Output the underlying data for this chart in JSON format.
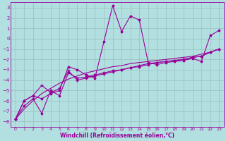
{
  "xlabel": "Windchill (Refroidissement éolien,°C)",
  "background_color": "#b2e0e0",
  "line_color": "#990099",
  "grid_color": "#aacccc",
  "xlim": [
    -0.5,
    23.5
  ],
  "ylim": [
    -8.5,
    3.5
  ],
  "xticks": [
    0,
    1,
    2,
    3,
    4,
    5,
    6,
    7,
    8,
    9,
    10,
    11,
    12,
    13,
    14,
    15,
    16,
    17,
    18,
    19,
    20,
    21,
    22,
    23
  ],
  "yticks": [
    3,
    2,
    1,
    0,
    -1,
    -2,
    -3,
    -4,
    -5,
    -6,
    -7,
    -8
  ],
  "line_smooth_x": [
    0,
    1,
    2,
    3,
    4,
    5,
    6,
    7,
    8,
    9,
    10,
    11,
    12,
    13,
    14,
    15,
    16,
    17,
    18,
    19,
    20,
    21,
    22,
    23
  ],
  "line_smooth_y": [
    -7.8,
    -6.8,
    -6.0,
    -5.3,
    -4.8,
    -4.3,
    -3.9,
    -3.6,
    -3.3,
    -3.1,
    -2.9,
    -2.7,
    -2.6,
    -2.4,
    -2.3,
    -2.2,
    -2.1,
    -2.0,
    -1.9,
    -1.8,
    -1.7,
    -1.5,
    -1.3,
    -1.0
  ],
  "line_jagged_x": [
    0,
    1,
    2,
    3,
    4,
    5,
    6,
    7,
    8,
    9,
    10,
    11,
    12,
    13,
    14,
    15,
    16,
    17,
    18,
    19,
    20,
    21,
    22,
    23
  ],
  "line_jagged_y": [
    -7.8,
    -6.0,
    -5.5,
    -5.8,
    -5.3,
    -5.0,
    -2.7,
    -3.0,
    -3.5,
    -3.8,
    -0.3,
    3.2,
    0.7,
    2.2,
    1.8,
    -2.3,
    -2.5,
    -2.3,
    -2.2,
    -2.1,
    -1.9,
    -2.2,
    0.3,
    0.8
  ],
  "line_mid1_x": [
    0,
    1,
    2,
    3,
    4,
    5,
    6,
    7,
    8,
    9,
    10,
    11,
    12,
    13,
    14,
    15,
    16,
    17,
    18,
    19,
    20,
    21,
    22,
    23
  ],
  "line_mid1_y": [
    -7.8,
    -6.0,
    -5.5,
    -4.5,
    -5.2,
    -4.8,
    -3.1,
    -4.0,
    -3.8,
    -3.6,
    -3.4,
    -3.2,
    -3.0,
    -2.8,
    -2.6,
    -2.4,
    -2.3,
    -2.2,
    -2.1,
    -2.0,
    -1.8,
    -1.7,
    -1.3,
    -1.0
  ],
  "line_mid2_x": [
    0,
    1,
    2,
    3,
    4,
    5,
    6,
    7,
    8,
    9,
    10,
    11,
    12,
    13,
    14,
    15,
    16,
    17,
    18,
    19,
    20,
    21,
    22,
    23
  ],
  "line_mid2_y": [
    -7.8,
    -6.5,
    -5.8,
    -7.2,
    -5.0,
    -5.5,
    -3.3,
    -3.8,
    -3.7,
    -3.5,
    -3.3,
    -3.1,
    -3.0,
    -2.8,
    -2.7,
    -2.5,
    -2.3,
    -2.2,
    -2.1,
    -2.0,
    -1.8,
    -1.7,
    -1.3,
    -1.0
  ]
}
